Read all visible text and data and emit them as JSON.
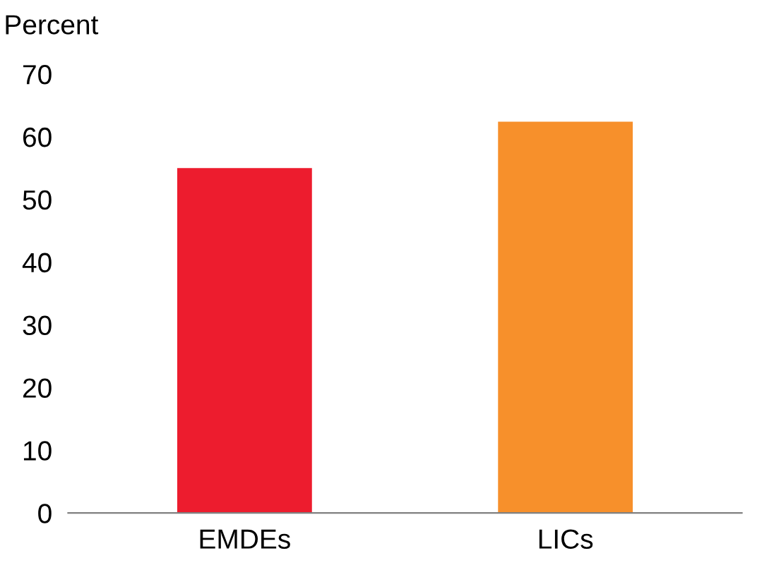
{
  "chart_data": {
    "type": "bar",
    "ylabel": "Percent",
    "categories": [
      "EMDEs",
      "LICs"
    ],
    "values": [
      55,
      62.4
    ],
    "colors": [
      "#ed1c2e",
      "#f7902b"
    ],
    "ylim": [
      0,
      70
    ],
    "yticks": [
      0,
      10,
      20,
      30,
      40,
      50,
      60,
      70
    ],
    "grid": false
  }
}
